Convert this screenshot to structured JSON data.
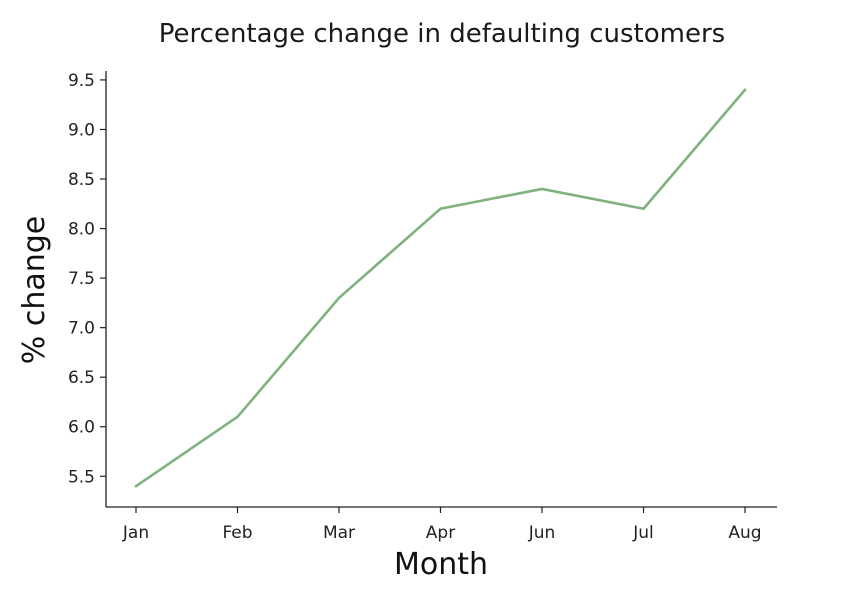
{
  "chart_data": {
    "type": "line",
    "title": "Percentage change in defaulting customers",
    "xlabel": "Month",
    "ylabel": "% change",
    "categories": [
      "Jan",
      "Feb",
      "Mar",
      "Apr",
      "Jun",
      "Jul",
      "Aug"
    ],
    "series": [
      {
        "values": [
          5.4,
          6.1,
          7.3,
          8.2,
          8.4,
          8.2,
          9.4
        ],
        "color": "#7fb27f"
      }
    ],
    "yticks": [
      "5.5",
      "6.0",
      "6.5",
      "7.0",
      "7.5",
      "8.0",
      "8.5",
      "9.0",
      "9.5"
    ],
    "ylim": [
      5.19,
      9.59
    ],
    "grid": false,
    "legend": "none"
  }
}
